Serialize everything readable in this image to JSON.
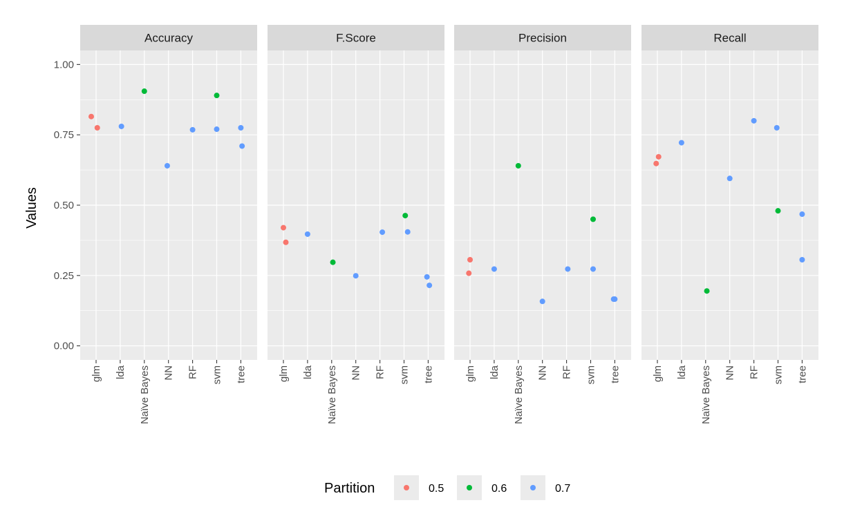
{
  "chart_data": {
    "type": "scatter",
    "ylabel": "Values",
    "ylim": [
      -0.05,
      1.05
    ],
    "yticks": [
      0.0,
      0.25,
      0.5,
      0.75,
      1.0
    ],
    "ytick_labels": [
      "0.00",
      "0.25",
      "0.50",
      "0.75",
      "1.00"
    ],
    "categories": [
      "glm",
      "lda",
      "Naïve Bayes",
      "NN",
      "RF",
      "svm",
      "tree"
    ],
    "grid": true,
    "legend": {
      "title": "Partition",
      "position": "bottom",
      "entries": [
        {
          "label": "0.5",
          "color": "#F8766D"
        },
        {
          "label": "0.6",
          "color": "#00BA38"
        },
        {
          "label": "0.7",
          "color": "#619CFF"
        }
      ]
    },
    "facets": [
      {
        "title": "Accuracy",
        "points": [
          {
            "category": "glm",
            "y": 0.815,
            "partition": "0.5",
            "jitter": -0.2
          },
          {
            "category": "glm",
            "y": 0.775,
            "partition": "0.5",
            "jitter": 0.05
          },
          {
            "category": "lda",
            "y": 0.78,
            "partition": "0.7",
            "jitter": 0.05
          },
          {
            "category": "Naïve Bayes",
            "y": 0.905,
            "partition": "0.6",
            "jitter": 0.0
          },
          {
            "category": "NN",
            "y": 0.64,
            "partition": "0.7",
            "jitter": -0.05
          },
          {
            "category": "RF",
            "y": 0.768,
            "partition": "0.7",
            "jitter": 0.0
          },
          {
            "category": "svm",
            "y": 0.89,
            "partition": "0.6",
            "jitter": 0.0
          },
          {
            "category": "svm",
            "y": 0.77,
            "partition": "0.7",
            "jitter": 0.0
          },
          {
            "category": "tree",
            "y": 0.775,
            "partition": "0.7",
            "jitter": 0.0
          },
          {
            "category": "tree",
            "y": 0.71,
            "partition": "0.7",
            "jitter": 0.05
          }
        ]
      },
      {
        "title": "F.Score",
        "points": [
          {
            "category": "glm",
            "y": 0.42,
            "partition": "0.5",
            "jitter": 0.0
          },
          {
            "category": "glm",
            "y": 0.368,
            "partition": "0.5",
            "jitter": 0.1
          },
          {
            "category": "lda",
            "y": 0.397,
            "partition": "0.7",
            "jitter": 0.0
          },
          {
            "category": "Naïve Bayes",
            "y": 0.297,
            "partition": "0.6",
            "jitter": 0.05
          },
          {
            "category": "NN",
            "y": 0.249,
            "partition": "0.7",
            "jitter": 0.0
          },
          {
            "category": "RF",
            "y": 0.404,
            "partition": "0.7",
            "jitter": 0.1
          },
          {
            "category": "svm",
            "y": 0.463,
            "partition": "0.6",
            "jitter": 0.05
          },
          {
            "category": "svm",
            "y": 0.405,
            "partition": "0.7",
            "jitter": 0.15
          },
          {
            "category": "tree",
            "y": 0.245,
            "partition": "0.7",
            "jitter": -0.05
          },
          {
            "category": "tree",
            "y": 0.215,
            "partition": "0.7",
            "jitter": 0.05
          }
        ]
      },
      {
        "title": "Precision",
        "points": [
          {
            "category": "glm",
            "y": 0.306,
            "partition": "0.5",
            "jitter": 0.0
          },
          {
            "category": "glm",
            "y": 0.258,
            "partition": "0.5",
            "jitter": -0.05
          },
          {
            "category": "lda",
            "y": 0.273,
            "partition": "0.7",
            "jitter": 0.0
          },
          {
            "category": "Naïve Bayes",
            "y": 0.64,
            "partition": "0.6",
            "jitter": 0.0
          },
          {
            "category": "NN",
            "y": 0.158,
            "partition": "0.7",
            "jitter": 0.0
          },
          {
            "category": "RF",
            "y": 0.273,
            "partition": "0.7",
            "jitter": 0.05
          },
          {
            "category": "svm",
            "y": 0.45,
            "partition": "0.6",
            "jitter": 0.1
          },
          {
            "category": "svm",
            "y": 0.273,
            "partition": "0.7",
            "jitter": 0.1
          },
          {
            "category": "tree",
            "y": 0.166,
            "partition": "0.7",
            "jitter": -0.05
          },
          {
            "category": "tree",
            "y": 0.166,
            "partition": "0.7",
            "jitter": 0.0
          }
        ]
      },
      {
        "title": "Recall",
        "points": [
          {
            "category": "glm",
            "y": 0.672,
            "partition": "0.5",
            "jitter": 0.05
          },
          {
            "category": "glm",
            "y": 0.648,
            "partition": "0.5",
            "jitter": -0.05
          },
          {
            "category": "lda",
            "y": 0.722,
            "partition": "0.7",
            "jitter": 0.0
          },
          {
            "category": "Naïve Bayes",
            "y": 0.195,
            "partition": "0.6",
            "jitter": 0.05
          },
          {
            "category": "NN",
            "y": 0.595,
            "partition": "0.7",
            "jitter": 0.0
          },
          {
            "category": "RF",
            "y": 0.8,
            "partition": "0.7",
            "jitter": 0.0
          },
          {
            "category": "svm",
            "y": 0.775,
            "partition": "0.7",
            "jitter": -0.05
          },
          {
            "category": "svm",
            "y": 0.48,
            "partition": "0.6",
            "jitter": 0.0
          },
          {
            "category": "tree",
            "y": 0.468,
            "partition": "0.7",
            "jitter": 0.0
          },
          {
            "category": "tree",
            "y": 0.306,
            "partition": "0.7",
            "jitter": 0.0
          }
        ]
      }
    ]
  }
}
